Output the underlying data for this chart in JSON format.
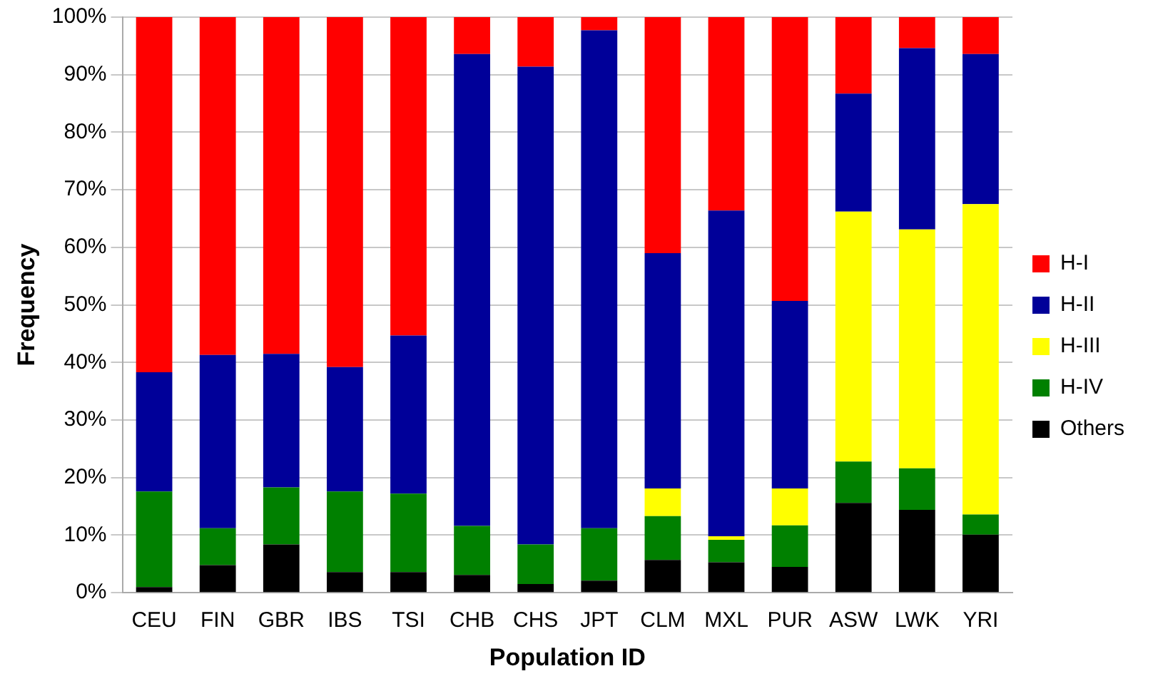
{
  "chart_data": {
    "type": "bar",
    "stacked": true,
    "xlabel": "Population ID",
    "ylabel": "Frequency",
    "categories": [
      "CEU",
      "FIN",
      "GBR",
      "IBS",
      "TSI",
      "CHB",
      "CHS",
      "JPT",
      "CLM",
      "MXL",
      "PUR",
      "ASW",
      "LWK",
      "YRI"
    ],
    "series": [
      {
        "name": "Others",
        "color": "#000000",
        "values": [
          1.0,
          4.8,
          8.4,
          3.6,
          3.6,
          3.1,
          1.5,
          2.1,
          5.7,
          5.3,
          4.5,
          15.6,
          14.4,
          10.1
        ]
      },
      {
        "name": "H-IV",
        "color": "#008000",
        "values": [
          16.6,
          6.4,
          9.9,
          14.0,
          13.6,
          8.5,
          6.9,
          9.1,
          7.6,
          3.9,
          7.2,
          7.2,
          7.2,
          3.5
        ]
      },
      {
        "name": "H-III",
        "color": "#ffff00",
        "values": [
          0,
          0,
          0,
          0,
          0,
          0,
          0,
          0,
          4.8,
          0.6,
          6.4,
          43.4,
          41.5,
          53.9
        ]
      },
      {
        "name": "H-II",
        "color": "#000099",
        "values": [
          20.7,
          30.1,
          23.2,
          21.6,
          27.5,
          82.0,
          83.0,
          86.5,
          40.9,
          56.6,
          32.6,
          20.5,
          31.5,
          26.1
        ]
      },
      {
        "name": "H-I",
        "color": "#ff0000",
        "values": [
          61.7,
          58.7,
          58.5,
          60.8,
          55.3,
          6.4,
          8.6,
          2.3,
          41.0,
          33.6,
          49.3,
          13.3,
          5.4,
          6.4
        ]
      }
    ],
    "ylim": [
      0,
      100
    ],
    "yticks": [
      {
        "value": 0,
        "label": "0%"
      },
      {
        "value": 10,
        "label": "10%"
      },
      {
        "value": 20,
        "label": "20%"
      },
      {
        "value": 30,
        "label": "30%"
      },
      {
        "value": 40,
        "label": "40%"
      },
      {
        "value": 50,
        "label": "50%"
      },
      {
        "value": 60,
        "label": "60%"
      },
      {
        "value": 70,
        "label": "70%"
      },
      {
        "value": 80,
        "label": "80%"
      },
      {
        "value": 90,
        "label": "90%"
      },
      {
        "value": 100,
        "label": "100%"
      }
    ],
    "grid": "y",
    "legend": "right"
  }
}
